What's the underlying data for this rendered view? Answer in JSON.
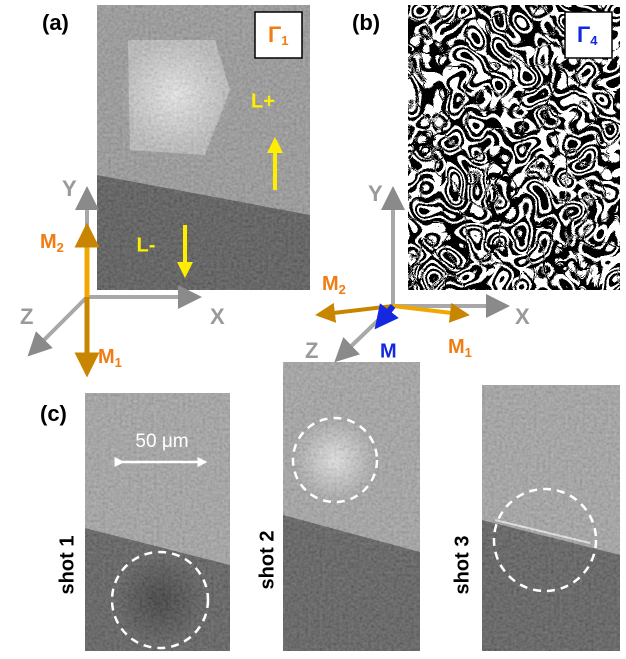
{
  "panel_a": {
    "label": "(a)",
    "badge": {
      "main": "Γ",
      "sub": "1"
    },
    "annotations": [
      "L+",
      "L-"
    ],
    "axes": {
      "y": "Y",
      "z": "Z",
      "x": "X",
      "m2": {
        "main": "M",
        "sub": "2"
      },
      "m1": {
        "main": "M",
        "sub": "1"
      }
    }
  },
  "panel_b": {
    "label": "(b)",
    "badge": {
      "main": "Γ",
      "sub": "4"
    },
    "axes": {
      "y": "Y",
      "z": "Z",
      "x": "X",
      "m2": {
        "main": "M",
        "sub": "2"
      },
      "m1": {
        "main": "M",
        "sub": "1"
      },
      "m": "M"
    }
  },
  "panel_c": {
    "label": "(c)",
    "scale_bar": "50 μm",
    "shots": [
      "shot 1",
      "shot 2",
      "shot 3"
    ]
  }
}
